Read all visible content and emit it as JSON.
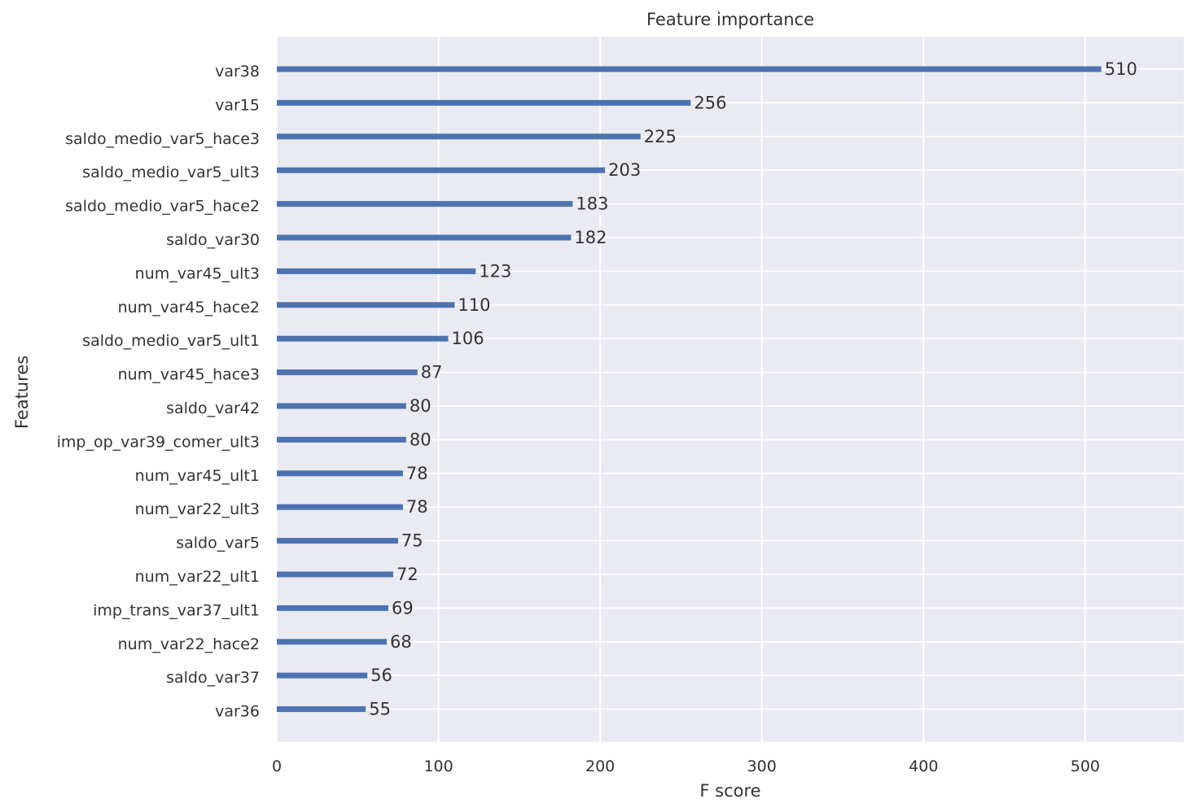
{
  "chart_data": {
    "type": "bar",
    "orientation": "horizontal",
    "title": "Feature importance",
    "xlabel": "F score",
    "ylabel": "Features",
    "xlim": [
      0,
      561
    ],
    "xticks": [
      0,
      100,
      200,
      300,
      400,
      500
    ],
    "grid": true,
    "colors": {
      "background": "#eaeaf2",
      "grid": "#ffffff",
      "bar": "#4c72b0",
      "text": "#333333"
    },
    "categories": [
      "var38",
      "var15",
      "saldo_medio_var5_hace3",
      "saldo_medio_var5_ult3",
      "saldo_medio_var5_hace2",
      "saldo_var30",
      "num_var45_ult3",
      "num_var45_hace2",
      "saldo_medio_var5_ult1",
      "num_var45_hace3",
      "saldo_var42",
      "imp_op_var39_comer_ult3",
      "num_var45_ult1",
      "num_var22_ult3",
      "saldo_var5",
      "num_var22_ult1",
      "imp_trans_var37_ult1",
      "num_var22_hace2",
      "saldo_var37",
      "var36"
    ],
    "values": [
      510,
      256,
      225,
      203,
      183,
      182,
      123,
      110,
      106,
      87,
      80,
      80,
      78,
      78,
      75,
      72,
      69,
      68,
      56,
      55
    ]
  }
}
